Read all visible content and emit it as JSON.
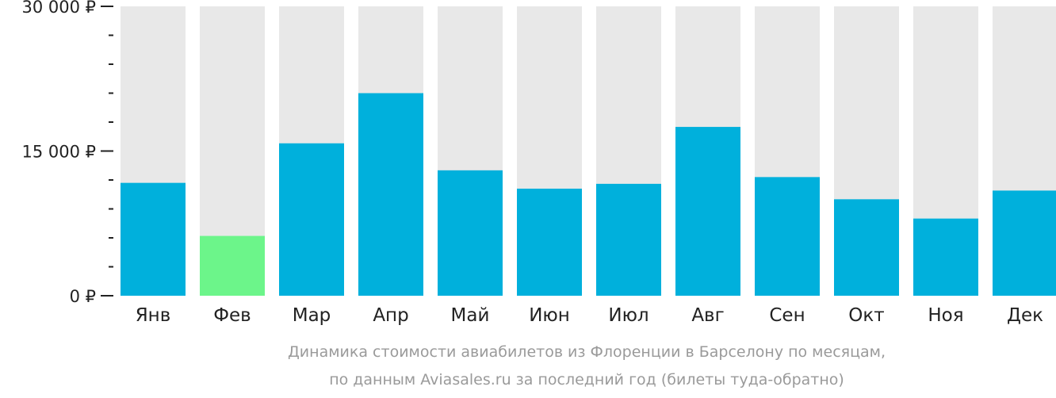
{
  "chart_data": {
    "type": "bar",
    "categories": [
      "Янв",
      "Фев",
      "Мар",
      "Апр",
      "Май",
      "Июн",
      "Июл",
      "Авг",
      "Сен",
      "Окт",
      "Ноя",
      "Дек"
    ],
    "values": [
      11700,
      6200,
      15800,
      21000,
      13000,
      11100,
      11600,
      17500,
      12300,
      10000,
      8000,
      10900
    ],
    "ylim": [
      0,
      30000
    ],
    "yticks": [
      {
        "value": 0,
        "label": "0 ₽"
      },
      {
        "value": 15000,
        "label": "15 000 ₽"
      },
      {
        "value": 30000,
        "label": "30 000 ₽"
      }
    ],
    "minor_tick_step": 3000,
    "highlight_index": 1,
    "colors": {
      "bar": "#00b0dc",
      "highlight": "#6cf58a",
      "background_bar": "#e8e8e8",
      "axis": "#222222"
    }
  },
  "caption": {
    "line1": "Динамика стоимости авиабилетов из Флоренции в Барселону по месяцам,",
    "line2": "по данным Aviasales.ru за последний год (билеты туда-обратно)"
  }
}
